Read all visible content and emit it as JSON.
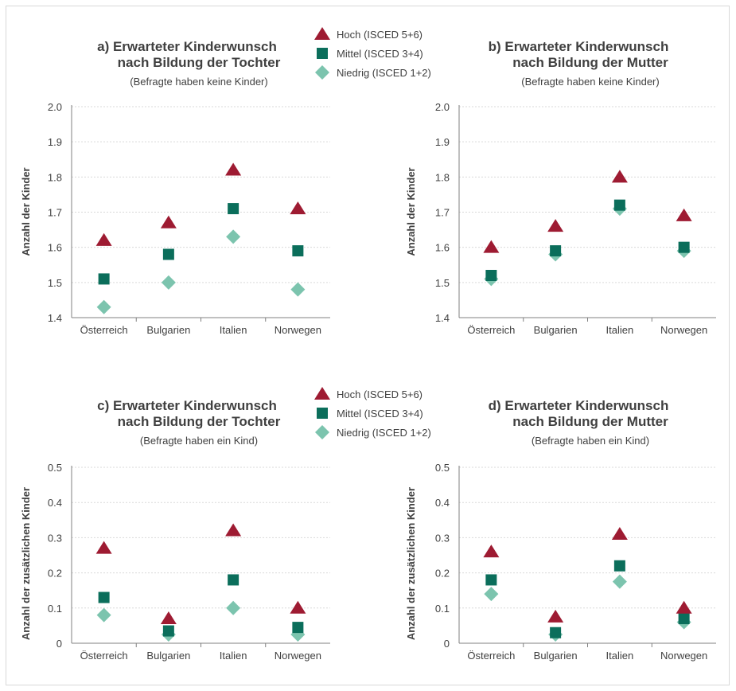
{
  "colors": {
    "hoch": "#9e1b32",
    "mittel": "#0b6e5b",
    "niedrig": "#7cc4ae",
    "text": "#404040",
    "grid": "#d9d9d9",
    "axis": "#808080"
  },
  "legends": [
    {
      "entries": [
        {
          "label": "Hoch (ISCED 5+6)",
          "marker": "triangle",
          "color": "#9e1b32"
        },
        {
          "label": "Mittel (ISCED 3+4)",
          "marker": "square",
          "color": "#0b6e5b"
        },
        {
          "label": "Niedrig (ISCED 1+2)",
          "marker": "diamond",
          "color": "#7cc4ae"
        }
      ]
    },
    {
      "entries": [
        {
          "label": "Hoch (ISCED 5+6)",
          "marker": "triangle",
          "color": "#9e1b32"
        },
        {
          "label": "Mittel (ISCED 3+4)",
          "marker": "square",
          "color": "#0b6e5b"
        },
        {
          "label": "Niedrig (ISCED 1+2)",
          "marker": "diamond",
          "color": "#7cc4ae"
        }
      ]
    }
  ],
  "chart_data": [
    {
      "type": "scatter",
      "title_line1": "a) Erwarteter Kinderwunsch",
      "title_line2": "nach Bildung der Tochter",
      "subtitle": "(Befragte haben keine Kinder)",
      "ylabel": "Anzahl der Kinder",
      "xlabel": "",
      "categories": [
        "Österreich",
        "Bulgarien",
        "Italien",
        "Norwegen"
      ],
      "ylim": [
        1.4,
        2.0
      ],
      "yticks": [
        "1.4",
        "1.5",
        "1.6",
        "1.7",
        "1.8",
        "1.9",
        "2.0"
      ],
      "grid": true,
      "series": [
        {
          "name": "Hoch (ISCED 5+6)",
          "values": [
            1.62,
            1.67,
            1.82,
            1.71
          ]
        },
        {
          "name": "Mittel (ISCED 3+4)",
          "values": [
            1.51,
            1.58,
            1.71,
            1.59
          ]
        },
        {
          "name": "Niedrig (ISCED 1+2)",
          "values": [
            1.43,
            1.5,
            1.63,
            1.48
          ]
        }
      ]
    },
    {
      "type": "scatter",
      "title_line1": "b) Erwarteter Kinderwunsch",
      "title_line2": "nach Bildung der Mutter",
      "subtitle": "(Befragte haben keine Kinder)",
      "ylabel": "Anzahl der Kinder",
      "xlabel": "",
      "categories": [
        "Österreich",
        "Bulgarien",
        "Italien",
        "Norwegen"
      ],
      "ylim": [
        1.4,
        2.0
      ],
      "yticks": [
        "1.4",
        "1.5",
        "1.6",
        "1.7",
        "1.8",
        "1.9",
        "2.0"
      ],
      "grid": true,
      "series": [
        {
          "name": "Hoch (ISCED 5+6)",
          "values": [
            1.6,
            1.66,
            1.8,
            1.69
          ]
        },
        {
          "name": "Mittel (ISCED 3+4)",
          "values": [
            1.52,
            1.59,
            1.72,
            1.6
          ]
        },
        {
          "name": "Niedrig (ISCED 1+2)",
          "values": [
            1.51,
            1.58,
            1.71,
            1.59
          ]
        }
      ]
    },
    {
      "type": "scatter",
      "title_line1": "c) Erwarteter Kinderwunsch",
      "title_line2": "nach Bildung der Tochter",
      "subtitle": "(Befragte haben ein Kind)",
      "ylabel": "Anzahl der zusätzlichen Kinder",
      "xlabel": "",
      "categories": [
        "Österreich",
        "Bulgarien",
        "Italien",
        "Norwegen"
      ],
      "ylim": [
        0,
        0.5
      ],
      "yticks": [
        "0",
        "0.1",
        "0.2",
        "0.3",
        "0.4",
        "0.5"
      ],
      "grid": true,
      "series": [
        {
          "name": "Hoch (ISCED 5+6)",
          "values": [
            0.27,
            0.07,
            0.32,
            0.1
          ]
        },
        {
          "name": "Mittel (ISCED 3+4)",
          "values": [
            0.13,
            0.035,
            0.18,
            0.045
          ]
        },
        {
          "name": "Niedrig (ISCED 1+2)",
          "values": [
            0.08,
            0.025,
            0.1,
            0.025
          ]
        }
      ]
    },
    {
      "type": "scatter",
      "title_line1": "d) Erwarteter Kinderwunsch",
      "title_line2": "nach Bildung der Mutter",
      "subtitle": "(Befragte haben ein Kind)",
      "ylabel": "Anzahl der zusätzlichen Kinder",
      "xlabel": "",
      "categories": [
        "Österreich",
        "Bulgarien",
        "Italien",
        "Norwegen"
      ],
      "ylim": [
        0,
        0.5
      ],
      "yticks": [
        "0",
        "0.1",
        "0.2",
        "0.3",
        "0.4",
        "0.5"
      ],
      "grid": true,
      "series": [
        {
          "name": "Hoch (ISCED 5+6)",
          "values": [
            0.26,
            0.075,
            0.31,
            0.1
          ]
        },
        {
          "name": "Mittel (ISCED 3+4)",
          "values": [
            0.18,
            0.03,
            0.22,
            0.07
          ]
        },
        {
          "name": "Niedrig (ISCED 1+2)",
          "values": [
            0.14,
            0.025,
            0.175,
            0.06
          ]
        }
      ]
    }
  ]
}
